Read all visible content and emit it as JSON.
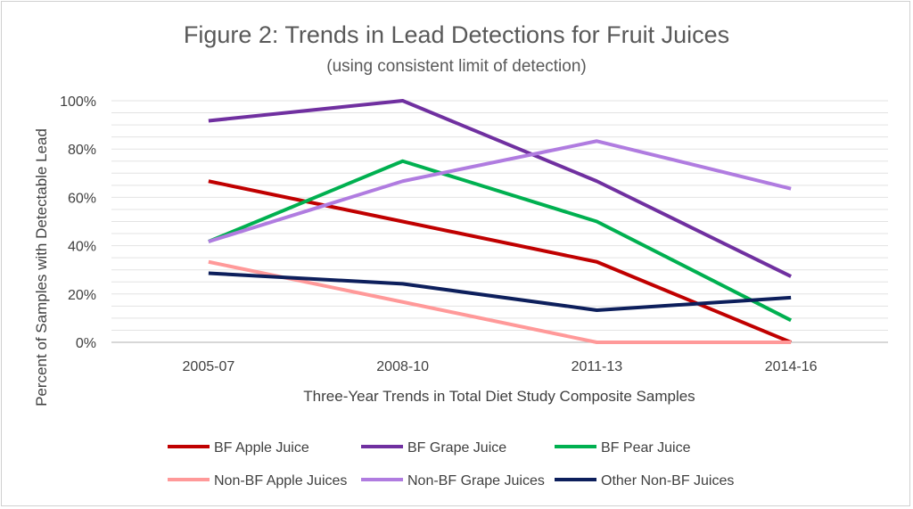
{
  "chart_data": {
    "type": "line",
    "title": "Figure 2: Trends in Lead Detections for Fruit Juices",
    "subtitle": "(using consistent limit of detection)",
    "xlabel": "Three-Year Trends in Total Diet Study Composite Samples",
    "ylabel": "Percent of Samples with Detectable Lead",
    "categories": [
      "2005-07",
      "2008-10",
      "2011-13",
      "2014-16"
    ],
    "ylim": [
      0,
      100
    ],
    "yticks": [
      0,
      20,
      40,
      60,
      80,
      100
    ],
    "ytick_labels": [
      "0%",
      "20%",
      "40%",
      "60%",
      "80%",
      "100%"
    ],
    "grid": true,
    "legend_position": "bottom",
    "series": [
      {
        "name": "BF Apple Juice",
        "color": "#C00000",
        "values": [
          66.7,
          50,
          33.3,
          0
        ]
      },
      {
        "name": "BF Grape Juice",
        "color": "#7030A0",
        "values": [
          91.7,
          100,
          66.7,
          27.3
        ]
      },
      {
        "name": "BF Pear Juice",
        "color": "#00B050",
        "values": [
          41.7,
          75,
          50,
          9.1
        ]
      },
      {
        "name": "Non-BF Apple Juices",
        "color": "#FF9999",
        "values": [
          33.3,
          16.7,
          0,
          0
        ]
      },
      {
        "name": "Non-BF Grape Juices",
        "color": "#B07CE0",
        "values": [
          41.7,
          66.7,
          83.3,
          63.6
        ]
      },
      {
        "name": "Other Non-BF Juices",
        "color": "#0D1F5C",
        "values": [
          28.6,
          24.2,
          13.3,
          18.5
        ]
      }
    ]
  }
}
